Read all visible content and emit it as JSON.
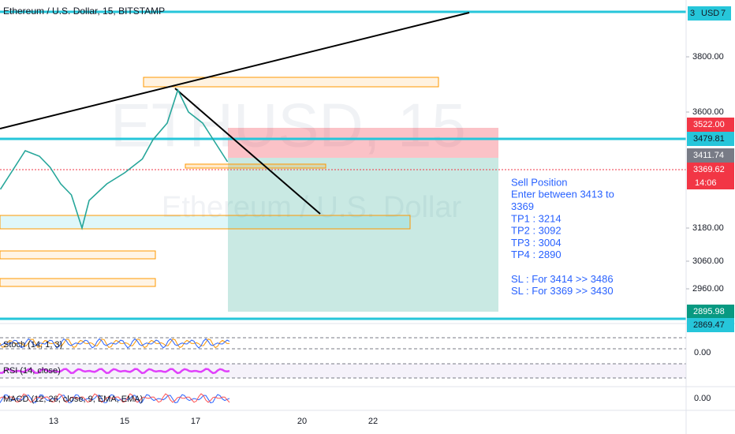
{
  "header": {
    "title": "Ethereum / U.S. Dollar, 15, BITSTAMP",
    "currency": "USD",
    "currency_badge": "7",
    "top_price_cut": "3"
  },
  "watermark": {
    "symbol": "ETHUSD, 15",
    "name": "Ethereum / U.S. Dollar"
  },
  "price_axis": {
    "ticks": [
      {
        "value": 3800,
        "label": "3800.00"
      },
      {
        "value": 3600,
        "label": "3600.00"
      },
      {
        "value": 3180,
        "label": "3180.00"
      },
      {
        "value": 3060,
        "label": "3060.00"
      },
      {
        "value": 2960,
        "label": "2960.00"
      }
    ]
  },
  "badges": [
    {
      "value": 3522,
      "label": "3522.00",
      "color": "#f23645"
    },
    {
      "value": 3479.81,
      "label": "3479.81",
      "color": "#26c6da"
    },
    {
      "value": 3411.74,
      "label": "3411.74",
      "color": "#787b86"
    },
    {
      "value": 3369.62,
      "label": "3369.62",
      "color": "#f23645"
    },
    {
      "value": 2895.98,
      "label": "2895.98",
      "color": "#089981"
    },
    {
      "value": 2869.47,
      "label": "2869.47",
      "color": "#26c6da"
    }
  ],
  "countdown": "14:06",
  "date_axis": {
    "ticks": [
      {
        "value": 13,
        "label": "13"
      },
      {
        "value": 15,
        "label": "15"
      },
      {
        "value": 17,
        "label": "17"
      },
      {
        "value": 20,
        "label": "20"
      },
      {
        "value": 22,
        "label": "22"
      }
    ]
  },
  "price": {
    "x": [
      11.5,
      11.8,
      12.2,
      12.6,
      12.9,
      13.2,
      13.5,
      13.8,
      14.0,
      14.5,
      15.0,
      15.5,
      15.8,
      16.2,
      16.5,
      16.8,
      17.2,
      17.5,
      17.9
    ],
    "values": [
      3320,
      3380,
      3460,
      3440,
      3400,
      3340,
      3300,
      3180,
      3280,
      3340,
      3380,
      3430,
      3500,
      3560,
      3680,
      3600,
      3560,
      3500,
      3420
    ]
  },
  "note": [
    "Sell Position",
    "Enter between  3413 to",
    "3369",
    "TP1 : 3214",
    "TP2 : 3092",
    "TP3 : 3004",
    "TP4 : 2890",
    "",
    "SL : For 3414 >> 3486",
    "SL : For 3369 >> 3430"
  ],
  "indicators": [
    {
      "name": "Stoch (14, 1, 3)",
      "value": "0.00"
    },
    {
      "name": "RSI (14, close)",
      "value": ""
    },
    {
      "name": "MACD (12, 26, close, 9, EMA, EMA)",
      "value": "0.00"
    }
  ]
}
